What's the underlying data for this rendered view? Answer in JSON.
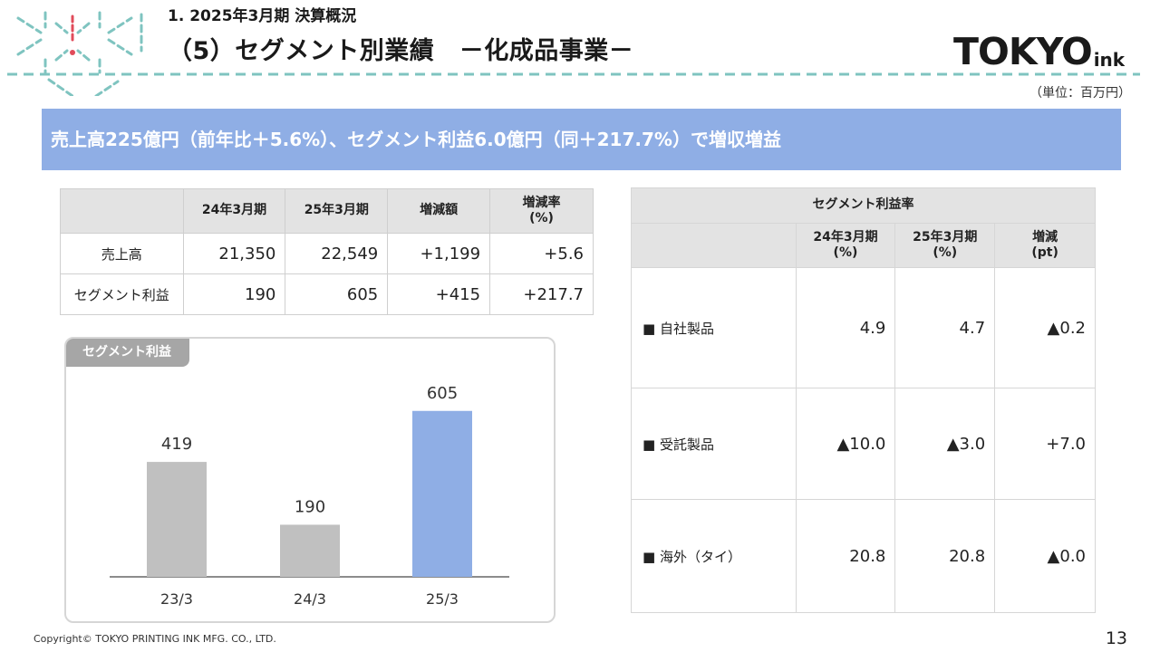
{
  "header": {
    "section": "1. 2025年3月期 決算概況",
    "title": "（5）セグメント別業績　－化成品事業－",
    "brand_main": "TOKYO",
    "brand_sub": "ink",
    "unit": "（単位：百万円）"
  },
  "summary": "売上高225億円（前年比＋5.6%）、セグメント利益6.0億円（同＋217.7%）で増収増益",
  "results_table": {
    "columns": [
      "",
      "24年3月期",
      "25年3月期",
      "増減額",
      "増減率\n(%)"
    ],
    "rows": [
      {
        "label": "売上高",
        "fy24": "21,350",
        "fy25": "22,549",
        "diff": "+1,199",
        "rate": "+5.6"
      },
      {
        "label": "セグメント利益",
        "fy24": "190",
        "fy25": "605",
        "diff": "+415",
        "rate": "+217.7"
      }
    ]
  },
  "chart_panel": {
    "label": "セグメント利益"
  },
  "chart_data": {
    "type": "bar",
    "categories": [
      "23/3",
      "24/3",
      "25/3"
    ],
    "values": [
      419,
      190,
      605
    ],
    "data_labels": [
      "419",
      "190",
      "605"
    ],
    "title": "セグメント利益",
    "xlabel": "",
    "ylabel": "",
    "ylim": [
      0,
      700
    ],
    "colors": [
      "#c0c0c0",
      "#c0c0c0",
      "#8faee5"
    ],
    "grid": false,
    "legend": "none"
  },
  "margin_table": {
    "caption": "セグメント利益率",
    "columns": [
      "",
      "24年3月期\n(%)",
      "25年3月期\n(%)",
      "増減\n(pt)"
    ],
    "rows": [
      {
        "label": "■ 自社製品",
        "fy24": "4.9",
        "fy25": "4.7",
        "diff": "▲0.2"
      },
      {
        "label": "■ 受託製品",
        "fy24": "▲10.0",
        "fy25": "▲3.0",
        "diff": "+7.0"
      },
      {
        "label": "■ 海外（タイ）",
        "fy24": "20.8",
        "fy25": "20.8",
        "diff": "▲0.0"
      }
    ]
  },
  "footer": {
    "copyright": "Copyright© TOKYO PRINTING INK MFG. CO., LTD.",
    "page": "13"
  },
  "colors": {
    "accent_blue": "#8faee5",
    "bar_gray": "#c0c0c0",
    "ornament_teal": "#7fc4c0",
    "ornament_red": "#e14b5a"
  }
}
